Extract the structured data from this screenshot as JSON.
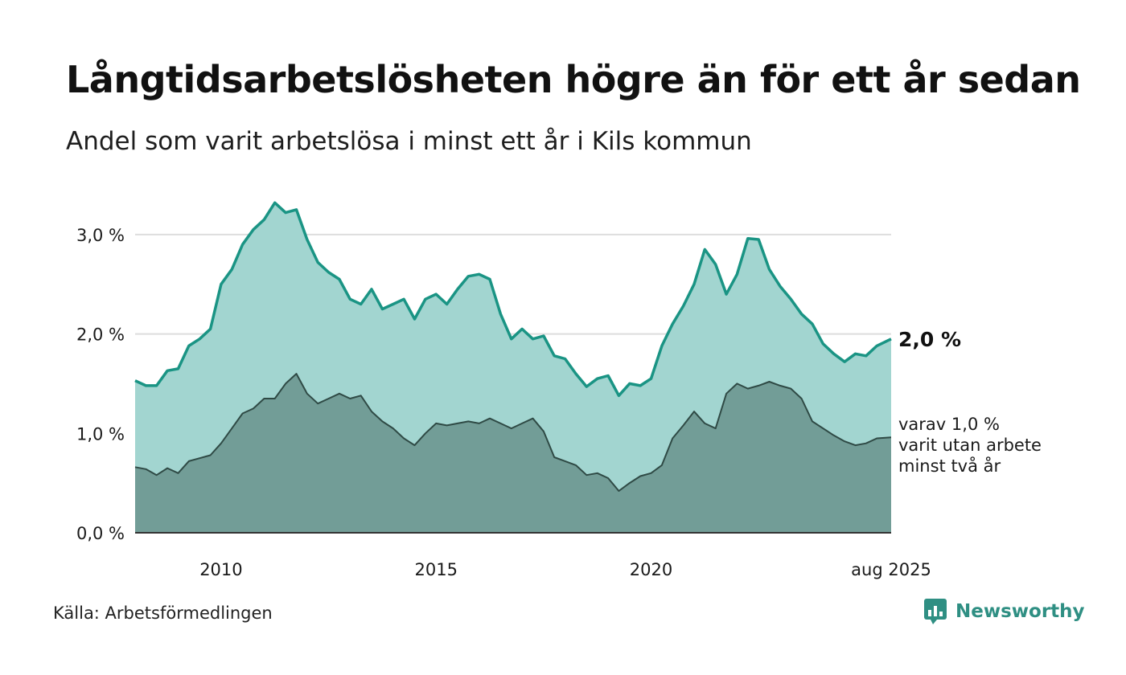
{
  "title": "Långtidsarbetslösheten högre än för ett år sedan",
  "subtitle": "Andel som varit arbetslösa i minst ett år i Kils kommun",
  "source": "Källa: Arbetsförmedlingen",
  "logo": {
    "name": "Newsworthy",
    "icon": "newsworthy-chart-bubble-icon",
    "color": "#2f8f83"
  },
  "colors": {
    "total_line": "#1a9484",
    "total_fill": "#a2d5d0",
    "long_fill": "#729d97",
    "long_line": "#2f4a45",
    "grid": "#dddddd"
  },
  "chart_data": {
    "type": "area",
    "ylim": [
      0,
      3.5
    ],
    "yticks": [
      0,
      1,
      2,
      3
    ],
    "ytick_labels": [
      "0,0 %",
      "1,0 %",
      "2,0 %",
      "3,0 %"
    ],
    "xlim": [
      "2008-01",
      "2025-08"
    ],
    "xticks": [
      "2010-01",
      "2015-01",
      "2020-01",
      "2025-08"
    ],
    "xtick_labels": [
      "2010",
      "2015",
      "2020",
      "aug 2025"
    ],
    "grid": true,
    "series": [
      {
        "name": "Arbetslösa i minst ett år",
        "end_label": "2,0 %",
        "points": [
          [
            "2008-01",
            1.53
          ],
          [
            "2008-04",
            1.48
          ],
          [
            "2008-07",
            1.48
          ],
          [
            "2008-10",
            1.63
          ],
          [
            "2009-01",
            1.65
          ],
          [
            "2009-04",
            1.88
          ],
          [
            "2009-07",
            1.95
          ],
          [
            "2009-10",
            2.05
          ],
          [
            "2010-01",
            2.5
          ],
          [
            "2010-04",
            2.65
          ],
          [
            "2010-07",
            2.9
          ],
          [
            "2010-10",
            3.05
          ],
          [
            "2011-01",
            3.15
          ],
          [
            "2011-04",
            3.32
          ],
          [
            "2011-07",
            3.22
          ],
          [
            "2011-10",
            3.25
          ],
          [
            "2012-01",
            2.95
          ],
          [
            "2012-04",
            2.72
          ],
          [
            "2012-07",
            2.62
          ],
          [
            "2012-10",
            2.55
          ],
          [
            "2013-01",
            2.35
          ],
          [
            "2013-04",
            2.3
          ],
          [
            "2013-07",
            2.45
          ],
          [
            "2013-10",
            2.25
          ],
          [
            "2014-01",
            2.3
          ],
          [
            "2014-04",
            2.35
          ],
          [
            "2014-07",
            2.15
          ],
          [
            "2014-10",
            2.35
          ],
          [
            "2015-01",
            2.4
          ],
          [
            "2015-04",
            2.3
          ],
          [
            "2015-07",
            2.45
          ],
          [
            "2015-10",
            2.58
          ],
          [
            "2016-01",
            2.6
          ],
          [
            "2016-04",
            2.55
          ],
          [
            "2016-07",
            2.2
          ],
          [
            "2016-10",
            1.95
          ],
          [
            "2017-01",
            2.05
          ],
          [
            "2017-04",
            1.95
          ],
          [
            "2017-07",
            1.98
          ],
          [
            "2017-10",
            1.78
          ],
          [
            "2018-01",
            1.75
          ],
          [
            "2018-04",
            1.6
          ],
          [
            "2018-07",
            1.47
          ],
          [
            "2018-10",
            1.55
          ],
          [
            "2019-01",
            1.58
          ],
          [
            "2019-04",
            1.38
          ],
          [
            "2019-07",
            1.5
          ],
          [
            "2019-10",
            1.48
          ],
          [
            "2020-01",
            1.55
          ],
          [
            "2020-04",
            1.88
          ],
          [
            "2020-07",
            2.1
          ],
          [
            "2020-10",
            2.28
          ],
          [
            "2021-01",
            2.5
          ],
          [
            "2021-04",
            2.85
          ],
          [
            "2021-07",
            2.7
          ],
          [
            "2021-10",
            2.4
          ],
          [
            "2022-01",
            2.6
          ],
          [
            "2022-04",
            2.96
          ],
          [
            "2022-07",
            2.95
          ],
          [
            "2022-10",
            2.65
          ],
          [
            "2023-01",
            2.48
          ],
          [
            "2023-04",
            2.35
          ],
          [
            "2023-07",
            2.2
          ],
          [
            "2023-10",
            2.1
          ],
          [
            "2024-01",
            1.9
          ],
          [
            "2024-04",
            1.8
          ],
          [
            "2024-07",
            1.72
          ],
          [
            "2024-10",
            1.8
          ],
          [
            "2025-01",
            1.78
          ],
          [
            "2025-04",
            1.88
          ],
          [
            "2025-08",
            1.95
          ]
        ]
      },
      {
        "name": "varav utan arbete minst två år",
        "end_label": [
          "varav 1,0 %",
          "varit utan arbete",
          "minst två år"
        ],
        "points": [
          [
            "2008-01",
            0.66
          ],
          [
            "2008-04",
            0.64
          ],
          [
            "2008-07",
            0.58
          ],
          [
            "2008-10",
            0.65
          ],
          [
            "2009-01",
            0.6
          ],
          [
            "2009-04",
            0.72
          ],
          [
            "2009-07",
            0.75
          ],
          [
            "2009-10",
            0.78
          ],
          [
            "2010-01",
            0.9
          ],
          [
            "2010-04",
            1.05
          ],
          [
            "2010-07",
            1.2
          ],
          [
            "2010-10",
            1.25
          ],
          [
            "2011-01",
            1.35
          ],
          [
            "2011-04",
            1.35
          ],
          [
            "2011-07",
            1.5
          ],
          [
            "2011-10",
            1.6
          ],
          [
            "2012-01",
            1.4
          ],
          [
            "2012-04",
            1.3
          ],
          [
            "2012-07",
            1.35
          ],
          [
            "2012-10",
            1.4
          ],
          [
            "2013-01",
            1.35
          ],
          [
            "2013-04",
            1.38
          ],
          [
            "2013-07",
            1.22
          ],
          [
            "2013-10",
            1.12
          ],
          [
            "2014-01",
            1.05
          ],
          [
            "2014-04",
            0.95
          ],
          [
            "2014-07",
            0.88
          ],
          [
            "2014-10",
            1.0
          ],
          [
            "2015-01",
            1.1
          ],
          [
            "2015-04",
            1.08
          ],
          [
            "2015-07",
            1.1
          ],
          [
            "2015-10",
            1.12
          ],
          [
            "2016-01",
            1.1
          ],
          [
            "2016-04",
            1.15
          ],
          [
            "2016-07",
            1.1
          ],
          [
            "2016-10",
            1.05
          ],
          [
            "2017-01",
            1.1
          ],
          [
            "2017-04",
            1.15
          ],
          [
            "2017-07",
            1.02
          ],
          [
            "2017-10",
            0.76
          ],
          [
            "2018-01",
            0.72
          ],
          [
            "2018-04",
            0.68
          ],
          [
            "2018-07",
            0.58
          ],
          [
            "2018-10",
            0.6
          ],
          [
            "2019-01",
            0.55
          ],
          [
            "2019-04",
            0.42
          ],
          [
            "2019-07",
            0.5
          ],
          [
            "2019-10",
            0.57
          ],
          [
            "2020-01",
            0.6
          ],
          [
            "2020-04",
            0.68
          ],
          [
            "2020-07",
            0.95
          ],
          [
            "2020-10",
            1.08
          ],
          [
            "2021-01",
            1.22
          ],
          [
            "2021-04",
            1.1
          ],
          [
            "2021-07",
            1.05
          ],
          [
            "2021-10",
            1.4
          ],
          [
            "2022-01",
            1.5
          ],
          [
            "2022-04",
            1.45
          ],
          [
            "2022-07",
            1.48
          ],
          [
            "2022-10",
            1.52
          ],
          [
            "2023-01",
            1.48
          ],
          [
            "2023-04",
            1.45
          ],
          [
            "2023-07",
            1.35
          ],
          [
            "2023-10",
            1.12
          ],
          [
            "2024-01",
            1.05
          ],
          [
            "2024-04",
            0.98
          ],
          [
            "2024-07",
            0.92
          ],
          [
            "2024-10",
            0.88
          ],
          [
            "2025-01",
            0.9
          ],
          [
            "2025-04",
            0.95
          ],
          [
            "2025-08",
            0.96
          ]
        ]
      }
    ]
  }
}
